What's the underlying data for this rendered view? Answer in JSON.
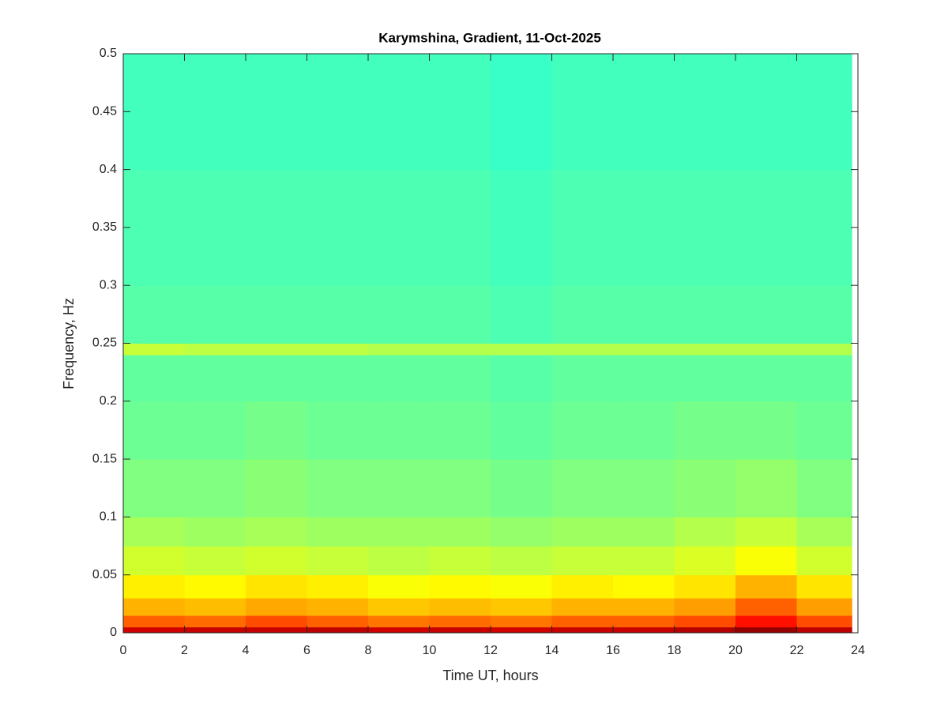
{
  "chart_data": {
    "type": "heatmap",
    "title": "Karymshina, Gradient, 11-Oct-2025",
    "x_label": "Time UT, hours",
    "y_label": "Frequency, Hz",
    "colormap": "jet",
    "clim": [
      0,
      1
    ],
    "xbins": [
      0,
      2,
      4,
      6,
      8,
      10,
      12,
      14,
      16,
      18,
      20,
      22,
      23.8
    ],
    "ybins": [
      0,
      0.005,
      0.015,
      0.03,
      0.05,
      0.075,
      0.1,
      0.15,
      0.2,
      0.24,
      0.25,
      0.3,
      0.4,
      0.5
    ],
    "z": [
      [
        0.92,
        0.93,
        0.93,
        0.94,
        0.92,
        0.93,
        0.92,
        0.93,
        0.93,
        0.95,
        0.98,
        0.94
      ],
      [
        0.78,
        0.77,
        0.8,
        0.78,
        0.76,
        0.77,
        0.76,
        0.78,
        0.78,
        0.8,
        0.86,
        0.8
      ],
      [
        0.7,
        0.69,
        0.71,
        0.7,
        0.68,
        0.69,
        0.68,
        0.7,
        0.7,
        0.72,
        0.78,
        0.72
      ],
      [
        0.64,
        0.63,
        0.65,
        0.64,
        0.62,
        0.63,
        0.62,
        0.64,
        0.63,
        0.65,
        0.7,
        0.65
      ],
      [
        0.58,
        0.57,
        0.58,
        0.57,
        0.56,
        0.57,
        0.56,
        0.57,
        0.57,
        0.59,
        0.62,
        0.58
      ],
      [
        0.54,
        0.53,
        0.54,
        0.53,
        0.53,
        0.53,
        0.52,
        0.53,
        0.53,
        0.55,
        0.57,
        0.54
      ],
      [
        0.5,
        0.5,
        0.51,
        0.5,
        0.5,
        0.5,
        0.49,
        0.5,
        0.5,
        0.51,
        0.52,
        0.5
      ],
      [
        0.48,
        0.48,
        0.49,
        0.48,
        0.48,
        0.48,
        0.47,
        0.48,
        0.48,
        0.49,
        0.49,
        0.48
      ],
      [
        0.47,
        0.47,
        0.47,
        0.47,
        0.47,
        0.47,
        0.46,
        0.47,
        0.47,
        0.47,
        0.47,
        0.47
      ],
      [
        0.57,
        0.56,
        0.56,
        0.56,
        0.55,
        0.55,
        0.55,
        0.55,
        0.55,
        0.55,
        0.55,
        0.55
      ],
      [
        0.46,
        0.46,
        0.46,
        0.46,
        0.46,
        0.46,
        0.45,
        0.46,
        0.46,
        0.46,
        0.46,
        0.46
      ],
      [
        0.45,
        0.45,
        0.45,
        0.45,
        0.45,
        0.45,
        0.44,
        0.45,
        0.45,
        0.45,
        0.45,
        0.45
      ],
      [
        0.44,
        0.44,
        0.44,
        0.44,
        0.44,
        0.44,
        0.43,
        0.44,
        0.44,
        0.44,
        0.44,
        0.44
      ]
    ],
    "xlim": [
      0,
      24
    ],
    "xticks": [
      0,
      2,
      4,
      6,
      8,
      10,
      12,
      14,
      16,
      18,
      20,
      22,
      24
    ],
    "ylim": [
      0,
      0.5
    ],
    "yticks": [
      0,
      0.05,
      0.1,
      0.15,
      0.2,
      0.25,
      0.3,
      0.35,
      0.4,
      0.45,
      0.5
    ]
  }
}
